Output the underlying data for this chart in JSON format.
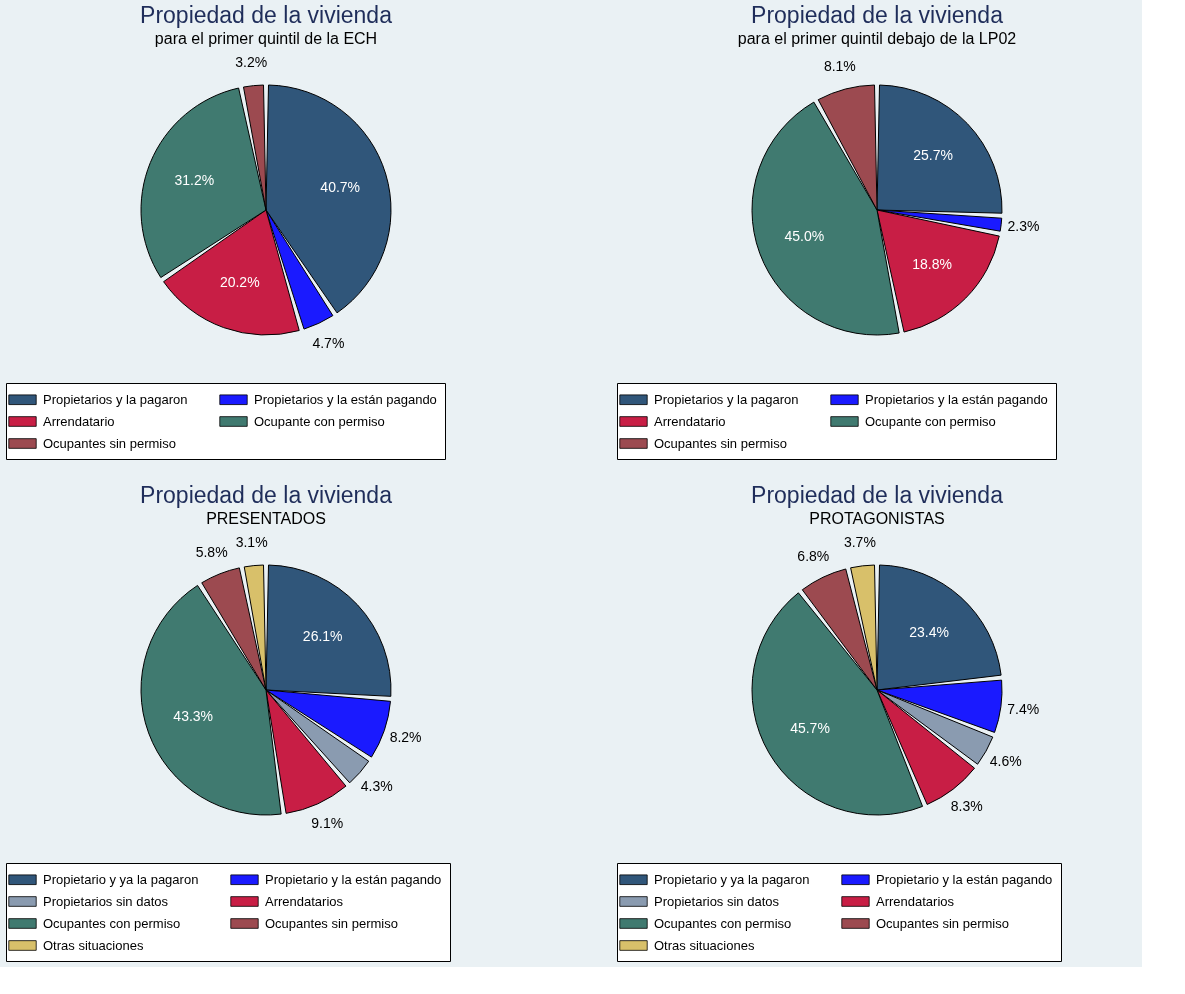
{
  "chart_data": [
    {
      "type": "pie",
      "title": "Propiedad de la vivienda",
      "subtitle": "para el primer quintil de la ECH",
      "legend": "bottom",
      "categories": [
        "Propietarios y la pagaron",
        "Propietarios y la están pagando",
        "Arrendatario",
        "Ocupante con permiso",
        "Ocupantes sin permiso"
      ],
      "values": [
        40.7,
        4.7,
        20.2,
        31.2,
        3.2
      ],
      "value_labels": [
        "40.7%",
        "4.7%",
        "20.2%",
        "31.2%",
        "3.2%"
      ],
      "colors": [
        "#30567a",
        "#1a1aff",
        "#c81e45",
        "#407a70",
        "#9c4a50"
      ]
    },
    {
      "type": "pie",
      "title": "Propiedad de la vivienda",
      "subtitle": "para el primer quintil debajo de la LP02",
      "legend": "bottom",
      "categories": [
        "Propietarios y la pagaron",
        "Propietarios y la están pagando",
        "Arrendatario",
        "Ocupante con permiso",
        "Ocupantes sin permiso"
      ],
      "values": [
        25.7,
        2.3,
        18.8,
        45.0,
        8.1
      ],
      "value_labels": [
        "25.7%",
        "2.3%",
        "18.8%",
        "45.0%",
        "8.1%"
      ],
      "colors": [
        "#30567a",
        "#1a1aff",
        "#c81e45",
        "#407a70",
        "#9c4a50"
      ]
    },
    {
      "type": "pie",
      "title": "Propiedad de la vivienda",
      "subtitle": "PRESENTADOS",
      "legend": "bottom",
      "categories": [
        "Propietario y ya la pagaron",
        "Propietario y la están pagando",
        "Propietarios sin datos",
        "Arrendatarios",
        "Ocupantes con permiso",
        "Ocupantes sin permiso",
        "Otras situaciones"
      ],
      "values": [
        26.1,
        8.2,
        4.3,
        9.1,
        43.3,
        5.8,
        3.1
      ],
      "value_labels": [
        "26.1%",
        "8.2%",
        "4.3%",
        "9.1%",
        "43.3%",
        "5.8%",
        "3.1%"
      ],
      "colors": [
        "#30567a",
        "#1a1aff",
        "#8a9bb0",
        "#c81e45",
        "#407a70",
        "#9c4a50",
        "#d8c06a"
      ]
    },
    {
      "type": "pie",
      "title": "Propiedad de la vivienda",
      "subtitle": "PROTAGONISTAS",
      "legend": "bottom",
      "categories": [
        "Propietario y ya la pagaron",
        "Propietario y la están pagando",
        "Propietarios sin datos",
        "Arrendatarios",
        "Ocupantes con permiso",
        "Ocupantes sin permiso",
        "Otras situaciones"
      ],
      "values": [
        23.4,
        7.4,
        4.6,
        8.3,
        45.7,
        6.8,
        3.7
      ],
      "value_labels": [
        "23.4%",
        "7.4%",
        "4.6%",
        "8.3%",
        "45.7%",
        "6.8%",
        "3.7%"
      ],
      "colors": [
        "#30567a",
        "#1a1aff",
        "#8a9bb0",
        "#c81e45",
        "#407a70",
        "#9c4a50",
        "#d8c06a"
      ]
    }
  ]
}
